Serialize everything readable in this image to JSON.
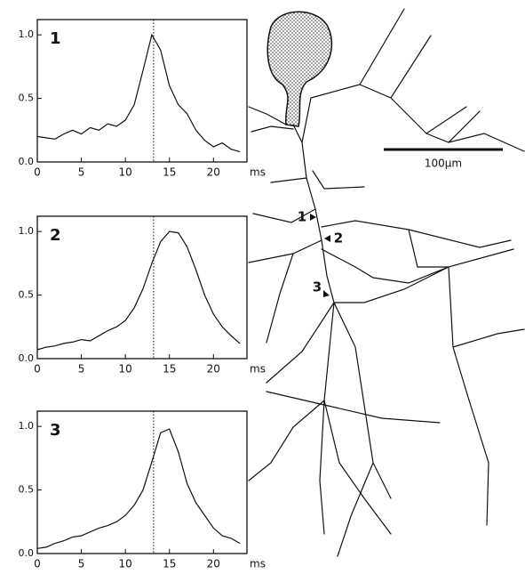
{
  "chart_data": [
    {
      "type": "line",
      "title": "1",
      "x_label": "ms",
      "x": [
        0,
        1,
        2,
        3,
        4,
        5,
        6,
        7,
        8,
        9,
        10,
        11,
        12,
        13,
        14,
        15,
        16,
        17,
        18,
        19,
        20,
        21,
        22,
        23
      ],
      "values": [
        0.2,
        0.19,
        0.18,
        0.22,
        0.25,
        0.22,
        0.27,
        0.25,
        0.3,
        0.28,
        0.33,
        0.45,
        0.72,
        1.0,
        0.88,
        0.6,
        0.45,
        0.38,
        0.25,
        0.17,
        0.12,
        0.15,
        0.1,
        0.08
      ],
      "color": "#111111",
      "marker_x": 13.2,
      "xlim": [
        0,
        23.8
      ],
      "ylim": [
        0,
        1.12
      ],
      "xticks": [
        0,
        5,
        10,
        15,
        20
      ],
      "yticks": [
        {
          "value": 0,
          "label": "0.0"
        },
        {
          "value": 0.5,
          "label": "0.5"
        },
        {
          "value": 1,
          "label": "1.0"
        }
      ]
    },
    {
      "type": "line",
      "title": "2",
      "x_label": "ms",
      "x": [
        0,
        1,
        2,
        3,
        4,
        5,
        6,
        7,
        8,
        9,
        10,
        11,
        12,
        13,
        14,
        15,
        16,
        17,
        18,
        19,
        20,
        21,
        22,
        23
      ],
      "values": [
        0.07,
        0.09,
        0.1,
        0.12,
        0.13,
        0.15,
        0.14,
        0.18,
        0.22,
        0.25,
        0.3,
        0.4,
        0.55,
        0.75,
        0.92,
        1.0,
        0.99,
        0.88,
        0.7,
        0.5,
        0.35,
        0.25,
        0.18,
        0.12
      ],
      "color": "#111111",
      "marker_x": 13.2,
      "xlim": [
        0,
        23.8
      ],
      "ylim": [
        0,
        1.12
      ],
      "xticks": [
        0,
        5,
        10,
        15,
        20
      ],
      "yticks": [
        {
          "value": 0,
          "label": "0.0"
        },
        {
          "value": 0.5,
          "label": "0.5"
        },
        {
          "value": 1,
          "label": "1.0"
        }
      ]
    },
    {
      "type": "line",
      "title": "3",
      "x_label": "ms",
      "x": [
        0,
        1,
        2,
        3,
        4,
        5,
        6,
        7,
        8,
        9,
        10,
        11,
        12,
        13,
        14,
        15,
        16,
        17,
        18,
        19,
        20,
        21,
        22,
        23
      ],
      "values": [
        0.04,
        0.05,
        0.08,
        0.1,
        0.13,
        0.14,
        0.17,
        0.2,
        0.22,
        0.25,
        0.3,
        0.38,
        0.5,
        0.72,
        0.95,
        0.98,
        0.8,
        0.55,
        0.4,
        0.3,
        0.2,
        0.14,
        0.12,
        0.08
      ],
      "color": "#111111",
      "marker_x": 13.2,
      "xlim": [
        0,
        23.8
      ],
      "ylim": [
        0,
        1.12
      ],
      "xticks": [
        0,
        5,
        10,
        15,
        20
      ],
      "yticks": [
        {
          "value": 0,
          "label": "0.0"
        },
        {
          "value": 0.5,
          "label": "0.5"
        },
        {
          "value": 1,
          "label": "1.0"
        }
      ]
    }
  ],
  "drawing": {
    "scale_bar_label": "100µm",
    "site_labels": [
      "1",
      "2",
      "3"
    ]
  }
}
